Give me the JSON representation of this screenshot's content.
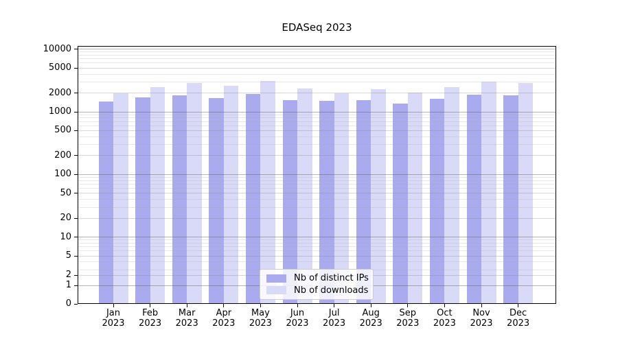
{
  "title": "EDASeq 2023",
  "legend": {
    "items": [
      {
        "label": "Nb of distinct IPs",
        "color": "#aaaaee"
      },
      {
        "label": "Nb of downloads",
        "color": "#d9d9f8"
      }
    ]
  },
  "y_axis": {
    "ticks": [
      {
        "label": "10000",
        "value": 10000
      },
      {
        "label": "5000",
        "value": 5000
      },
      {
        "label": "2000",
        "value": 2000
      },
      {
        "label": "1000",
        "value": 1000
      },
      {
        "label": "500",
        "value": 500
      },
      {
        "label": "200",
        "value": 200
      },
      {
        "label": "100",
        "value": 100
      },
      {
        "label": "50",
        "value": 50
      },
      {
        "label": "20",
        "value": 20
      },
      {
        "label": "10",
        "value": 10
      },
      {
        "label": "5",
        "value": 5
      },
      {
        "label": "2",
        "value": 2
      },
      {
        "label": "1",
        "value": 1
      },
      {
        "label": "0",
        "value": 0
      }
    ]
  },
  "x_axis": {
    "months": [
      {
        "month": "Jan",
        "year": "2023"
      },
      {
        "month": "Feb",
        "year": "2023"
      },
      {
        "month": "Mar",
        "year": "2023"
      },
      {
        "month": "Apr",
        "year": "2023"
      },
      {
        "month": "May",
        "year": "2023"
      },
      {
        "month": "Jun",
        "year": "2023"
      },
      {
        "month": "Jul",
        "year": "2023"
      },
      {
        "month": "Aug",
        "year": "2023"
      },
      {
        "month": "Sep",
        "year": "2023"
      },
      {
        "month": "Oct",
        "year": "2023"
      },
      {
        "month": "Nov",
        "year": "2023"
      },
      {
        "month": "Dec",
        "year": "2023"
      }
    ]
  },
  "chart_data": {
    "type": "bar",
    "title": "EDASeq 2023",
    "categories": [
      "Jan 2023",
      "Feb 2023",
      "Mar 2023",
      "Apr 2023",
      "May 2023",
      "Jun 2023",
      "Jul 2023",
      "Aug 2023",
      "Sep 2023",
      "Oct 2023",
      "Nov 2023",
      "Dec 2023"
    ],
    "series": [
      {
        "name": "Nb of distinct IPs",
        "color": "#aaaaee",
        "values": [
          1450,
          1700,
          1850,
          1650,
          1950,
          1550,
          1500,
          1550,
          1350,
          1600,
          1900,
          1850
        ]
      },
      {
        "name": "Nb of downloads",
        "color": "#d9d9f8",
        "values": [
          2000,
          2500,
          2900,
          2600,
          3150,
          2350,
          2000,
          2300,
          2050,
          2500,
          3050,
          2850
        ]
      }
    ],
    "xlabel": "",
    "ylabel": "",
    "yscale": "log-like with ticks 0,1,2,5,10,...,10000",
    "ylim": [
      0,
      10000
    ],
    "grid": "both major and minor horizontal gridlines, drawn over bars",
    "legend_position": "lower center inside plot"
  },
  "colors": {
    "bar_distinct_ips": "#aaaaee",
    "bar_downloads": "#d9d9f8",
    "grid_major": "#b5b5b5",
    "grid_mid": "#d6d6d6",
    "grid_faint": "#e6e6e6",
    "spine": "#000000",
    "background": "#ffffff"
  }
}
